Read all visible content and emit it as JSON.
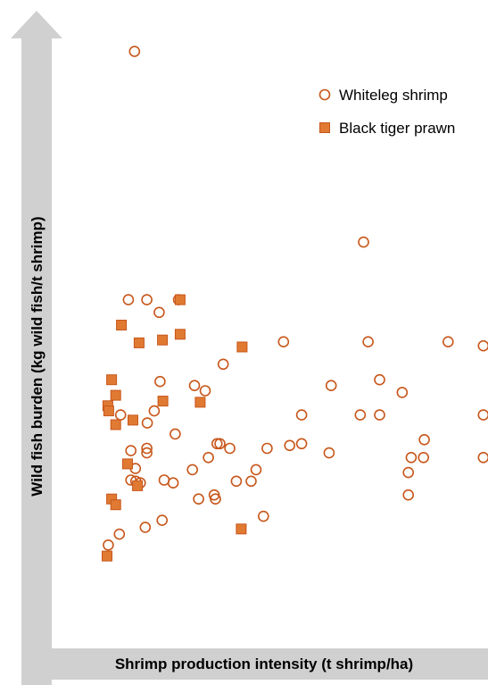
{
  "chart_data": {
    "type": "scatter",
    "title": "",
    "xlabel": "Shrimp production intensity (t shrimp/ha)",
    "ylabel": "Wild fish burden (kg wild fish/t shrimp)",
    "xlim": [
      0,
      100
    ],
    "ylim": [
      0,
      100
    ],
    "ticks": "none",
    "grid": false,
    "legend_position": "top-right",
    "colors": {
      "marker": "#e07a33",
      "marker_stroke": "#c8561a",
      "axis": "#d0d0d0"
    },
    "series": [
      {
        "name": "Whiteleg shrimp",
        "marker": "open-circle",
        "points": [
          [
            15.4,
            99.6
          ],
          [
            71.2,
            66.5
          ],
          [
            13.9,
            56.5
          ],
          [
            18.4,
            56.5
          ],
          [
            21.4,
            54.3
          ],
          [
            26.1,
            56.5
          ],
          [
            51.7,
            49.2
          ],
          [
            72.3,
            49.2
          ],
          [
            91.8,
            49.2
          ],
          [
            100.4,
            48.5
          ],
          [
            37.0,
            45.3
          ],
          [
            63.3,
            41.6
          ],
          [
            75.1,
            42.6
          ],
          [
            80.6,
            40.4
          ],
          [
            21.6,
            42.3
          ],
          [
            30.0,
            41.6
          ],
          [
            32.6,
            40.7
          ],
          [
            12.0,
            36.5
          ],
          [
            20.2,
            37.2
          ],
          [
            56.1,
            36.5
          ],
          [
            70.4,
            36.5
          ],
          [
            75.1,
            36.5
          ],
          [
            100.4,
            36.5
          ],
          [
            18.5,
            35.1
          ],
          [
            25.3,
            33.2
          ],
          [
            86.0,
            32.2
          ],
          [
            35.5,
            31.5
          ],
          [
            36.2,
            31.5
          ],
          [
            56.1,
            31.5
          ],
          [
            14.5,
            30.3
          ],
          [
            18.4,
            30.7
          ],
          [
            18.4,
            29.9
          ],
          [
            38.6,
            30.7
          ],
          [
            47.7,
            30.7
          ],
          [
            53.2,
            31.2
          ],
          [
            62.8,
            29.9
          ],
          [
            33.4,
            29.1
          ],
          [
            82.8,
            29.1
          ],
          [
            85.8,
            29.1
          ],
          [
            100.4,
            29.1
          ],
          [
            15.6,
            27.2
          ],
          [
            29.5,
            27.0
          ],
          [
            45.0,
            27.0
          ],
          [
            82.1,
            26.5
          ],
          [
            14.5,
            25.2
          ],
          [
            15.7,
            25.0
          ],
          [
            16.8,
            24.7
          ],
          [
            22.6,
            25.2
          ],
          [
            24.8,
            24.7
          ],
          [
            40.2,
            25.0
          ],
          [
            43.8,
            25.0
          ],
          [
            82.1,
            22.6
          ],
          [
            34.8,
            22.6
          ],
          [
            31.0,
            21.9
          ],
          [
            35.1,
            21.9
          ],
          [
            46.8,
            18.9
          ],
          [
            22.1,
            18.2
          ],
          [
            18.0,
            17.0
          ],
          [
            11.7,
            15.8
          ],
          [
            9.0,
            13.9
          ]
        ]
      },
      {
        "name": "Black tiger prawn",
        "marker": "filled-square",
        "points": [
          [
            26.5,
            56.5
          ],
          [
            12.2,
            52.1
          ],
          [
            26.5,
            50.5
          ],
          [
            22.2,
            49.5
          ],
          [
            16.5,
            49.0
          ],
          [
            41.6,
            48.3
          ],
          [
            9.8,
            42.6
          ],
          [
            10.8,
            39.9
          ],
          [
            22.3,
            38.9
          ],
          [
            31.4,
            38.7
          ],
          [
            8.9,
            38.1
          ],
          [
            9.1,
            37.2
          ],
          [
            15.0,
            35.6
          ],
          [
            10.8,
            34.8
          ],
          [
            13.7,
            28.0
          ],
          [
            16.1,
            24.2
          ],
          [
            9.8,
            21.9
          ],
          [
            10.8,
            20.9
          ],
          [
            41.4,
            16.7
          ],
          [
            8.7,
            12.0
          ]
        ]
      }
    ]
  }
}
